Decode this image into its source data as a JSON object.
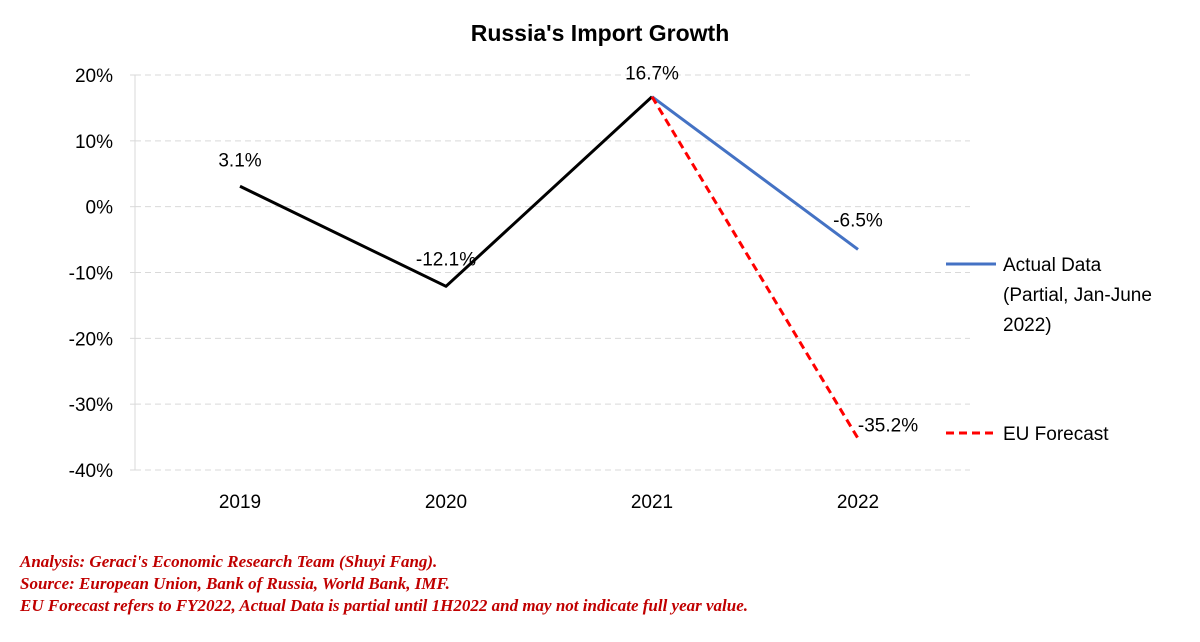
{
  "chart_data": {
    "type": "line",
    "title": "Russia's Import Growth",
    "categories": [
      "2019",
      "2020",
      "2021",
      "2022"
    ],
    "ylim": [
      -40,
      20
    ],
    "yticks": [
      20,
      10,
      0,
      -10,
      -20,
      -30,
      -40
    ],
    "ytick_labels": [
      "20%",
      "10%",
      "0%",
      "-10%",
      "-20%",
      "-30%",
      "-40%"
    ],
    "grid": true,
    "series": [
      {
        "name": "Historical",
        "color": "#000000",
        "style": "solid",
        "legend": false,
        "points": [
          {
            "x": "2019",
            "y": 3.1
          },
          {
            "x": "2020",
            "y": -12.1
          },
          {
            "x": "2021",
            "y": 16.7
          }
        ]
      },
      {
        "name": "Actual Data (Partial, Jan-June 2022)",
        "color": "#4472c4",
        "style": "solid",
        "legend": true,
        "points": [
          {
            "x": "2021",
            "y": 16.7
          },
          {
            "x": "2022",
            "y": -6.5
          }
        ]
      },
      {
        "name": "EU Forecast",
        "color": "#ff0000",
        "style": "dashed",
        "legend": true,
        "points": [
          {
            "x": "2021",
            "y": 16.7
          },
          {
            "x": "2022",
            "y": -35.2
          }
        ]
      }
    ],
    "data_labels": [
      {
        "x": "2019",
        "y": 3.1,
        "text": "3.1%"
      },
      {
        "x": "2020",
        "y": -12.1,
        "text": "-12.1%"
      },
      {
        "x": "2021",
        "y": 16.7,
        "text": "16.7%"
      },
      {
        "x": "2022",
        "y": -6.5,
        "text": "-6.5%"
      },
      {
        "x": "2022",
        "y": -35.2,
        "text": "-35.2%"
      }
    ],
    "legend": {
      "placement": "right",
      "entries": [
        {
          "lines": [
            "Actual Data",
            "(Partial, Jan-June",
            "2022)"
          ],
          "color": "#4472c4",
          "style": "solid"
        },
        {
          "lines": [
            "EU Forecast"
          ],
          "color": "#ff0000",
          "style": "dashed"
        }
      ]
    }
  },
  "notes": [
    "Analysis: Geraci's Economic Research Team (Shuyi Fang).",
    "Source: European Union, Bank of Russia, World Bank, IMF.",
    "EU Forecast refers to FY2022, Actual Data is partial until 1H2022 and may not indicate full year value."
  ]
}
